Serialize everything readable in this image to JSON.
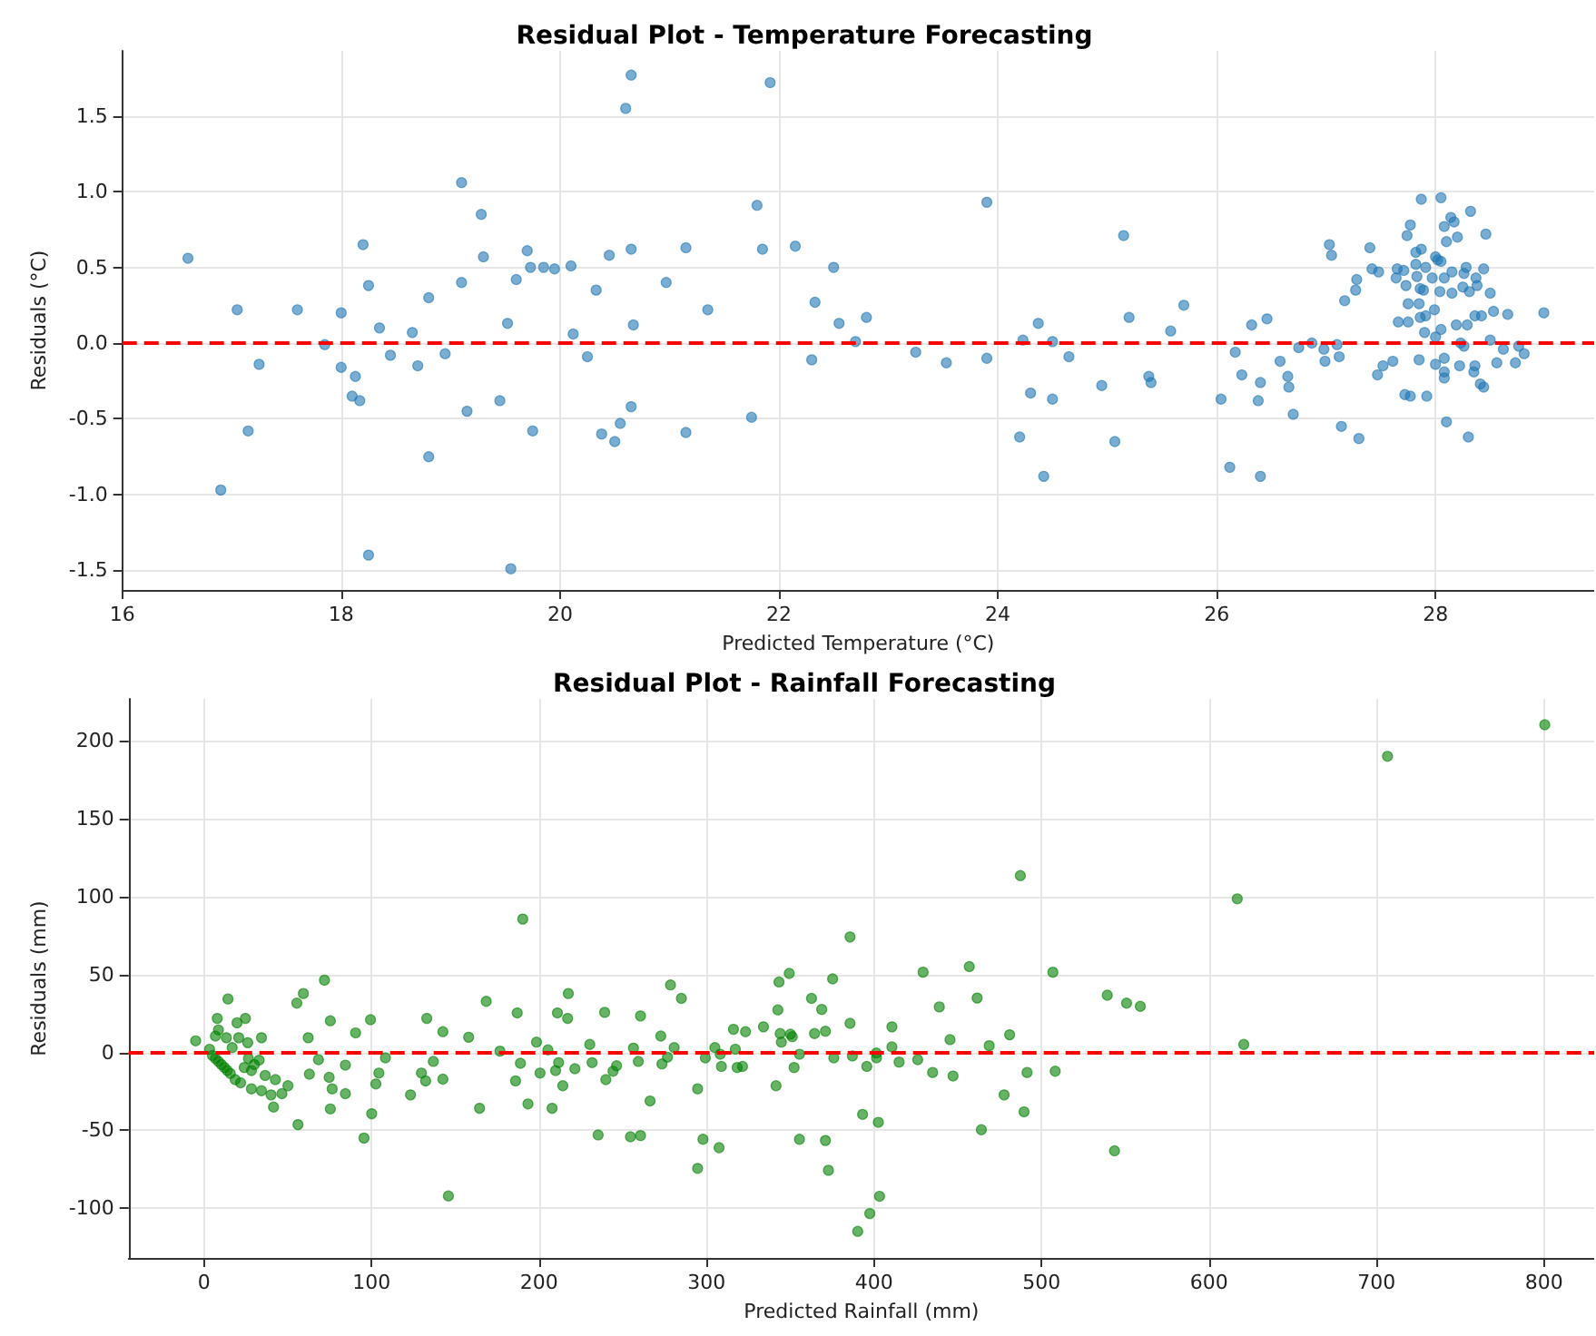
{
  "chart_data": [
    {
      "type": "scatter",
      "title": "Residual Plot - Temperature Forecasting",
      "xlabel": "Predicted Temperature (°C)",
      "ylabel": "Residuals (°C)",
      "xlim": [
        16,
        29.45
      ],
      "xticks": [
        16,
        18,
        20,
        22,
        24,
        26,
        28
      ],
      "ylim": [
        -1.63,
        1.93
      ],
      "yticks": [
        -1.5,
        {
          "value": -1,
          "label": "-1.0"
        },
        -0.5,
        {
          "value": 0,
          "label": "0.0"
        },
        0.5,
        {
          "value": 1,
          "label": "1.0"
        },
        1.5
      ],
      "grid": true,
      "marker": "circle",
      "ref_lines": [
        {
          "axis": "y",
          "value": 0,
          "color": "#ff0000",
          "line_style": "dashed"
        }
      ],
      "series": [
        {
          "color": "#1f77b4",
          "x": [
            16.6,
            17.05,
            16.9,
            17.15,
            17.25,
            17.6,
            17.85,
            18.0,
            18.0,
            18.1,
            18.13,
            18.17,
            18.2,
            18.25,
            18.25,
            18.35,
            18.45,
            18.65,
            18.7,
            18.8,
            18.8,
            18.95,
            19.1,
            19.1,
            19.15,
            19.28,
            19.3,
            19.45,
            19.52,
            19.55,
            19.6,
            19.7,
            19.73,
            19.75,
            19.85,
            19.95,
            20.1,
            20.12,
            20.25,
            20.33,
            20.38,
            20.45,
            20.5,
            20.55,
            20.6,
            20.65,
            20.65,
            20.65,
            20.67,
            20.97,
            21.15,
            21.15,
            21.35,
            21.75,
            21.8,
            21.85,
            21.92,
            22.15,
            22.3,
            22.33,
            22.5,
            22.55,
            22.7,
            22.8,
            23.25,
            23.53,
            23.9,
            23.9,
            24.2,
            24.23,
            24.3,
            24.37,
            24.42,
            24.5,
            24.5,
            24.65,
            24.95,
            25.07,
            25.15,
            25.2,
            25.38,
            25.4,
            25.58,
            25.7,
            26.04,
            26.12,
            26.17,
            26.23,
            26.32,
            26.38,
            26.4,
            26.4,
            26.46,
            26.58,
            26.65,
            26.66,
            26.7,
            26.75,
            26.87,
            26.98,
            26.99,
            27.03,
            27.05,
            27.1,
            27.12,
            27.14,
            27.17,
            27.27,
            27.28,
            27.3,
            27.4,
            27.42,
            27.87,
            28.05,
            28.14,
            28.17,
            28.32,
            27.77,
            27.74,
            28.08,
            28.2,
            28.46,
            27.82,
            27.87,
            28.1,
            28.0,
            28.02,
            27.82,
            27.91,
            28.05,
            27.65,
            27.71,
            28.28,
            28.44,
            27.48,
            27.83,
            28.15,
            28.26,
            27.64,
            27.97,
            28.08,
            28.37,
            27.73,
            27.86,
            27.89,
            28.04,
            28.15,
            28.25,
            28.31,
            28.38,
            28.5,
            27.75,
            27.85,
            27.99,
            27.91,
            27.86,
            27.66,
            27.75,
            28.19,
            28.29,
            28.36,
            28.42,
            28.53,
            28.66,
            28.99,
            28.05,
            27.9,
            28.0,
            28.23,
            28.5,
            28.26,
            28.62,
            28.76,
            28.81,
            28.56,
            28.73,
            27.85,
            28.0,
            28.08,
            28.22,
            28.36,
            27.61,
            27.52,
            27.47,
            28.08,
            28.08,
            28.35,
            28.41,
            28.44,
            27.72,
            27.77,
            27.92,
            28.1,
            28.3
          ],
          "values": [
            0.56,
            0.22,
            -0.97,
            -0.58,
            -0.14,
            0.22,
            -0.01,
            0.2,
            -0.16,
            -0.35,
            -0.22,
            -0.38,
            0.65,
            0.38,
            -1.4,
            0.1,
            -0.08,
            0.07,
            -0.15,
            0.3,
            -0.75,
            -0.07,
            0.4,
            1.06,
            -0.45,
            0.85,
            0.57,
            -0.38,
            0.13,
            -1.49,
            0.42,
            0.61,
            0.5,
            -0.58,
            0.5,
            0.49,
            0.51,
            0.06,
            -0.09,
            0.35,
            -0.6,
            0.58,
            -0.65,
            -0.53,
            1.55,
            1.77,
            0.62,
            -0.42,
            0.12,
            0.4,
            0.63,
            -0.59,
            0.22,
            -0.49,
            0.91,
            0.62,
            1.72,
            0.64,
            -0.11,
            0.27,
            0.5,
            0.13,
            0.01,
            0.17,
            -0.06,
            -0.13,
            -0.1,
            0.93,
            -0.62,
            0.02,
            -0.33,
            0.13,
            -0.88,
            -0.37,
            0.01,
            -0.09,
            -0.28,
            -0.65,
            0.71,
            0.17,
            -0.22,
            -0.26,
            0.08,
            0.25,
            -0.37,
            -0.82,
            -0.06,
            -0.21,
            0.12,
            -0.38,
            -0.88,
            -0.26,
            0.16,
            -0.12,
            -0.22,
            -0.29,
            -0.47,
            -0.03,
            0.0,
            -0.04,
            -0.12,
            0.65,
            0.58,
            -0.01,
            -0.09,
            -0.55,
            0.28,
            0.35,
            0.42,
            -0.63,
            0.63,
            0.49,
            0.95,
            0.96,
            0.83,
            0.8,
            0.87,
            0.78,
            0.71,
            0.77,
            0.7,
            0.72,
            0.6,
            0.62,
            0.67,
            0.57,
            0.55,
            0.52,
            0.5,
            0.54,
            0.49,
            0.48,
            0.5,
            0.49,
            0.47,
            0.44,
            0.47,
            0.46,
            0.43,
            0.43,
            0.43,
            0.43,
            0.38,
            0.36,
            0.35,
            0.34,
            0.33,
            0.37,
            0.34,
            0.38,
            0.33,
            0.26,
            0.26,
            0.22,
            0.18,
            0.17,
            0.14,
            0.14,
            0.12,
            0.12,
            0.18,
            0.18,
            0.21,
            0.19,
            0.2,
            0.09,
            0.07,
            0.04,
            0.0,
            0.02,
            -0.02,
            -0.04,
            -0.02,
            -0.07,
            -0.13,
            -0.13,
            -0.11,
            -0.14,
            -0.1,
            -0.15,
            -0.15,
            -0.12,
            -0.15,
            -0.21,
            -0.19,
            -0.23,
            -0.19,
            -0.27,
            -0.29,
            -0.34,
            -0.35,
            -0.35,
            -0.52,
            -0.62
          ]
        }
      ]
    },
    {
      "type": "scatter",
      "title": "Residual Plot - Rainfall Forecasting",
      "xlabel": "Predicted Rainfall (mm)",
      "ylabel": "Residuals (mm)",
      "xlim": [
        -45,
        830
      ],
      "xticks": [
        0,
        100,
        200,
        300,
        400,
        500,
        600,
        700,
        800
      ],
      "ylim": [
        -132,
        227
      ],
      "yticks": [
        -100,
        -50,
        0,
        50,
        100,
        150,
        200
      ],
      "grid": true,
      "marker": "circle",
      "ref_lines": [
        {
          "axis": "y",
          "value": 0,
          "color": "#ff0000",
          "line_style": "dashed"
        }
      ],
      "series": [
        {
          "color": "#008000",
          "x": [
            -5,
            14.3,
            7.9,
            8.6,
            19.7,
            24.7,
            13.3,
            6.8,
            20.7,
            26.1,
            34.3,
            16.8,
            3.3,
            5,
            6.8,
            8.6,
            10.4,
            12.2,
            13.9,
            15.7,
            18.6,
            21.8,
            24,
            26.5,
            28.3,
            30.0,
            32.9,
            36.5,
            28.3,
            34.3,
            40,
            42.6,
            46.5,
            50.1,
            41.5,
            56.1,
            55.4,
            59.3,
            71.9,
            75.4,
            62.2,
            62.9,
            68.3,
            74.7,
            76.5,
            75.4,
            84.4,
            84.4,
            90.5,
            95.5,
            99.4,
            100.1,
            102.6,
            104.4,
            108.3,
            123.3,
            129.8,
            132.3,
            133,
            136.9,
            142.6,
            142.6,
            145.9,
            158,
            164.5,
            168.5,
            176.7,
            186,
            187,
            188.9,
            190.3,
            193.4,
            198.5,
            200.6,
            205.3,
            207.8,
            209.9,
            211,
            211.7,
            214.2,
            217.1,
            217.5,
            221.4,
            230.3,
            231.7,
            235.3,
            239.2,
            239.9,
            244.2,
            246.3,
            254.6,
            256.4,
            259.3,
            260.6,
            260.6,
            266.3,
            272.7,
            273.4,
            276.7,
            278.5,
            280.7,
            285,
            294.7,
            294.7,
            297.9,
            299.3,
            305,
            307.5,
            308.2,
            308.9,
            316.1,
            317.2,
            318.3,
            321.5,
            323.3,
            334,
            341.5,
            342.6,
            343.3,
            344,
            344.7,
            349.4,
            350.1,
            351.2,
            352.3,
            355.5,
            355.5,
            362.7,
            364.5,
            368.8,
            371,
            371,
            372.8,
            375.3,
            376,
            385.7,
            385.7,
            387.1,
            393.2,
            395.7,
            397.5,
            390.3,
            401.5,
            402.6,
            403.3,
            401.4,
            410.7,
            410.7,
            415,
            426.1,
            429.3,
            435,
            439,
            445.4,
            447.2,
            456.9,
            461.6,
            464.1,
            468.8,
            477.7,
            481,
            487.4,
            489.6,
            491.4,
            506.8,
            508.2,
            539.3,
            543.6,
            550.8,
            559,
            616.9,
            620.8,
            706.6,
            800.5
          ],
          "values": [
            7.4,
            34.3,
            21.8,
            14.4,
            19,
            21.8,
            9.4,
            10.5,
            9.4,
            6.2,
            9.4,
            3.1,
            2,
            -2,
            -3.9,
            -5.8,
            -7.8,
            -9.7,
            -11.7,
            -13.6,
            -17.5,
            -19.5,
            -9.7,
            -3.9,
            -11.7,
            -7.8,
            -5,
            -14.8,
            -23.4,
            -24.6,
            -27.3,
            -17.5,
            -26.5,
            -21.4,
            -35.1,
            -46.4,
            31.6,
            37.8,
            46.4,
            20.3,
            9.4,
            -14,
            -4.7,
            -16,
            -23.4,
            -36.3,
            -8.2,
            -26.5,
            12.5,
            -55,
            21,
            -39.4,
            -20.3,
            -13.3,
            -3.5,
            -27.3,
            -13.3,
            -18.3,
            21.8,
            -5.8,
            13.3,
            -17.2,
            -92.2,
            9.7,
            -35.9,
            32.8,
            0.8,
            -18.3,
            25.3,
            -7,
            85.6,
            -33.1,
            6.6,
            -13.3,
            1.6,
            -35.9,
            -11.7,
            25.3,
            -6.6,
            -21.4,
            21.8,
            37.8,
            -10.5,
            5.1,
            -6.6,
            -53,
            25.7,
            -17.5,
            -12.1,
            -8.6,
            -54.2,
            2.7,
            -5.8,
            23.4,
            -53.4,
            -31.2,
            10.5,
            -7.4,
            -3.1,
            43.3,
            3.1,
            34.7,
            -23.4,
            -74.5,
            -55.8,
            -3.5,
            3.1,
            -61.2,
            -1.2,
            -9,
            14.8,
            2,
            -9.7,
            -9,
            13.3,
            16.4,
            -21.4,
            27.3,
            45.2,
            12.1,
            6.6,
            50.7,
            11.7,
            10.1,
            -9.7,
            -1.2,
            -55.8,
            34.7,
            12.1,
            27.6,
            13.6,
            -56.6,
            -75.7,
            47.2,
            -3.5,
            74.1,
            18.7,
            -2.3,
            -39.8,
            -9,
            -103.5,
            -114.9,
            -3.5,
            -44.9,
            -92.4,
            -0.4,
            16.4,
            3.5,
            -6.2,
            -4.7,
            51.5,
            -12.9,
            29.2,
            8.2,
            -15.2,
            55.1,
            34.9,
            -49.7,
            4.3,
            -27.3,
            11.3,
            113.5,
            -38.2,
            -12.9,
            51.5,
            -12.1,
            36.7,
            -63.2,
            31.6,
            29.6,
            98.6,
            5.1,
            190.1,
            210.4
          ]
        }
      ]
    }
  ]
}
